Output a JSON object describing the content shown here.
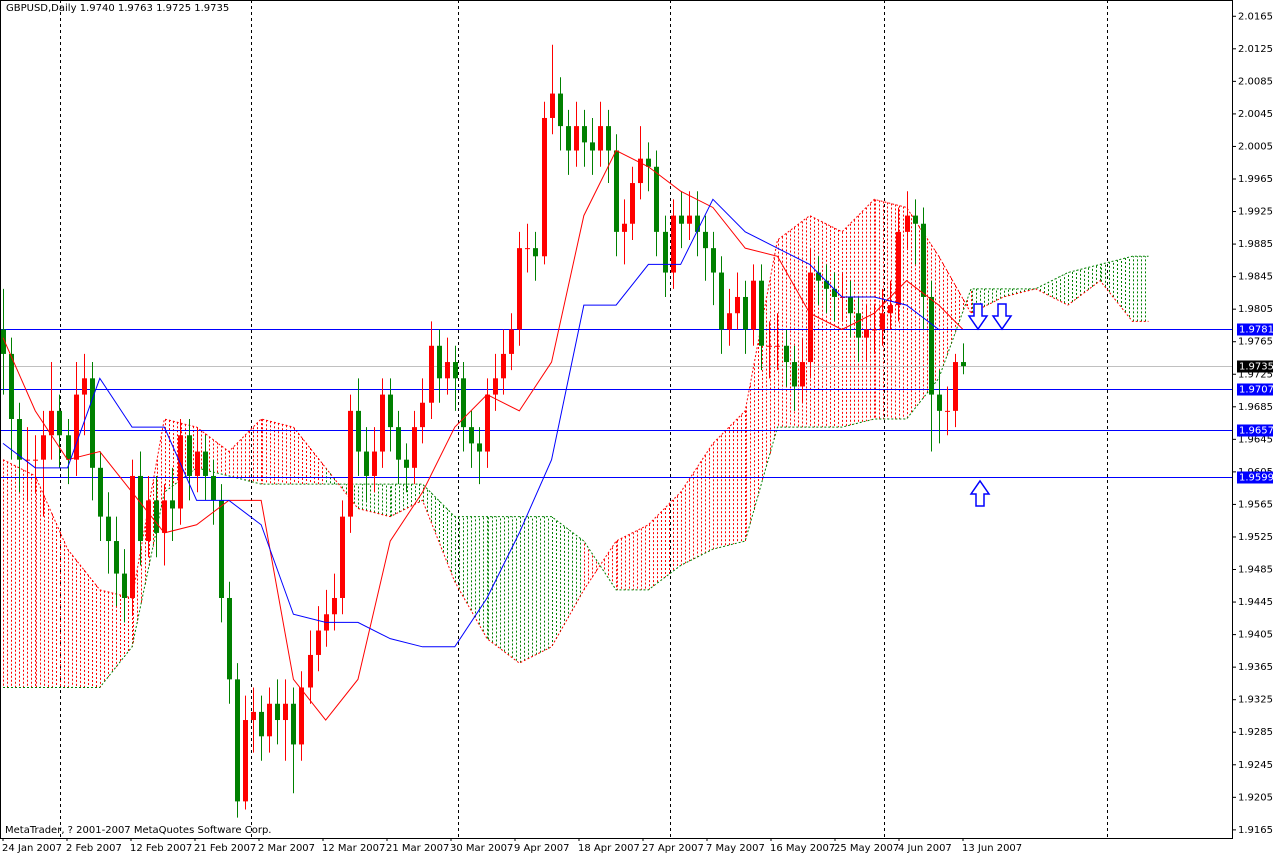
{
  "header": {
    "title": "GBPUSD,Daily",
    "ohlc": [
      "1.9740",
      "1.9763",
      "1.9725",
      "1.9735"
    ]
  },
  "chart_data": {
    "type": "candlestick",
    "open": [
      1.978,
      1.975,
      1.967,
      1.962,
      1.962,
      1.962,
      1.965,
      1.968,
      1.965,
      1.962,
      1.97,
      1.972,
      1.961,
      1.955,
      1.952,
      1.948,
      1.945,
      1.96,
      1.952,
      1.957,
      1.953,
      1.957,
      1.956,
      1.965,
      1.96,
      1.963,
      1.96,
      1.957,
      1.945,
      1.935,
      1.92,
      1.93,
      1.931,
      1.928,
      1.932,
      1.93,
      1.932,
      1.927,
      1.934,
      1.938,
      1.941,
      1.943,
      1.945,
      1.955,
      1.968,
      1.963,
      1.96,
      1.963,
      1.97,
      1.966,
      1.962,
      1.961,
      1.966,
      1.969,
      1.976,
      1.972,
      1.974,
      1.972,
      1.966,
      1.964,
      1.963,
      1.97,
      1.972,
      1.975,
      1.978,
      1.988,
      1.988,
      1.987,
      2.004,
      2.007,
      2.003,
      2.0,
      2.003,
      2.001,
      2.0,
      2.003,
      2.0,
      1.99,
      1.991,
      1.996,
      1.999,
      1.998,
      1.99,
      1.985,
      1.992,
      1.991,
      1.992,
      1.99,
      1.988,
      1.985,
      1.978,
      1.98,
      1.982,
      1.978,
      1.984,
      1.976,
      1.976,
      1.976,
      1.974,
      1.971,
      1.974,
      1.985,
      1.984,
      1.983,
      1.982,
      1.982,
      1.98,
      1.977,
      1.978,
      1.978,
      1.98,
      1.981,
      1.99,
      1.992,
      1.991,
      1.982,
      1.97,
      1.968,
      1.968,
      1.974
    ],
    "high": [
      1.983,
      1.977,
      1.969,
      1.966,
      1.965,
      1.968,
      1.974,
      1.97,
      1.967,
      1.974,
      1.975,
      1.974,
      1.963,
      1.958,
      1.955,
      1.951,
      1.962,
      1.963,
      1.96,
      1.96,
      1.959,
      1.961,
      1.967,
      1.967,
      1.966,
      1.965,
      1.962,
      1.959,
      1.947,
      1.937,
      1.933,
      1.934,
      1.933,
      1.934,
      1.935,
      1.935,
      1.934,
      1.936,
      1.941,
      1.944,
      1.946,
      1.948,
      1.957,
      1.97,
      1.972,
      1.966,
      1.966,
      1.972,
      1.972,
      1.968,
      1.964,
      1.968,
      1.972,
      1.979,
      1.978,
      1.977,
      1.976,
      1.974,
      1.968,
      1.966,
      1.972,
      1.975,
      1.978,
      1.98,
      1.99,
      1.991,
      1.99,
      2.006,
      2.013,
      2.009,
      2.005,
      2.006,
      2.005,
      2.004,
      2.006,
      2.005,
      2.002,
      1.994,
      1.998,
      2.003,
      2.001,
      2.0,
      1.992,
      1.994,
      1.995,
      1.995,
      1.995,
      1.992,
      1.99,
      1.987,
      1.983,
      1.985,
      1.984,
      1.986,
      1.986,
      1.979,
      1.98,
      1.978,
      1.976,
      1.977,
      1.988,
      1.987,
      1.986,
      1.985,
      1.985,
      1.984,
      1.982,
      1.981,
      1.981,
      1.983,
      1.984,
      1.993,
      1.995,
      1.994,
      1.993,
      1.984,
      1.973,
      1.971,
      1.975,
      1.9763
    ],
    "low": [
      1.97,
      1.962,
      1.958,
      1.957,
      1.958,
      1.955,
      1.962,
      1.961,
      1.959,
      1.96,
      1.965,
      1.957,
      1.952,
      1.948,
      1.944,
      1.942,
      1.943,
      1.949,
      1.95,
      1.95,
      1.949,
      1.952,
      1.954,
      1.957,
      1.958,
      1.957,
      1.954,
      1.942,
      1.932,
      1.918,
      1.919,
      1.926,
      1.925,
      1.926,
      1.927,
      1.925,
      1.921,
      1.925,
      1.932,
      1.936,
      1.939,
      1.941,
      1.943,
      1.953,
      1.96,
      1.957,
      1.958,
      1.961,
      1.963,
      1.959,
      1.958,
      1.959,
      1.964,
      1.967,
      1.969,
      1.97,
      1.968,
      1.963,
      1.961,
      1.959,
      1.961,
      1.968,
      1.97,
      1.973,
      1.976,
      1.985,
      1.984,
      1.986,
      2.002,
      2.0,
      1.997,
      1.998,
      1.998,
      1.997,
      1.998,
      1.996,
      1.987,
      1.986,
      1.989,
      1.994,
      1.995,
      1.987,
      1.982,
      1.983,
      1.988,
      1.989,
      1.987,
      1.984,
      1.981,
      1.975,
      1.976,
      1.978,
      1.975,
      1.976,
      1.973,
      1.972,
      1.973,
      1.971,
      1.968,
      1.969,
      1.972,
      1.981,
      1.98,
      1.979,
      1.979,
      1.977,
      1.974,
      1.974,
      1.975,
      1.976,
      1.978,
      1.979,
      1.988,
      1.986,
      1.978,
      1.963,
      1.964,
      1.965,
      1.966,
      1.9725
    ],
    "close": [
      1.975,
      1.967,
      1.962,
      1.962,
      1.962,
      1.965,
      1.968,
      1.965,
      1.962,
      1.97,
      1.972,
      1.961,
      1.955,
      1.952,
      1.948,
      1.945,
      1.96,
      1.952,
      1.957,
      1.953,
      1.957,
      1.956,
      1.965,
      1.96,
      1.963,
      1.96,
      1.957,
      1.945,
      1.935,
      1.92,
      1.93,
      1.931,
      1.928,
      1.932,
      1.93,
      1.932,
      1.927,
      1.934,
      1.938,
      1.941,
      1.943,
      1.945,
      1.955,
      1.968,
      1.963,
      1.96,
      1.963,
      1.97,
      1.966,
      1.962,
      1.961,
      1.966,
      1.969,
      1.976,
      1.972,
      1.974,
      1.972,
      1.966,
      1.964,
      1.963,
      1.97,
      1.972,
      1.975,
      1.978,
      1.988,
      1.988,
      1.987,
      2.004,
      2.007,
      2.003,
      2.0,
      2.003,
      2.001,
      2.0,
      2.003,
      2.0,
      1.99,
      1.991,
      1.996,
      1.999,
      1.998,
      1.99,
      1.985,
      1.992,
      1.991,
      1.992,
      1.99,
      1.988,
      1.985,
      1.978,
      1.98,
      1.982,
      1.978,
      1.984,
      1.976,
      1.976,
      1.976,
      1.974,
      1.971,
      1.974,
      1.985,
      1.984,
      1.983,
      1.982,
      1.982,
      1.98,
      1.977,
      1.978,
      1.978,
      1.98,
      1.981,
      1.99,
      1.992,
      1.991,
      1.982,
      1.97,
      1.968,
      1.968,
      1.974,
      1.9735
    ],
    "up_color": "#ff0000",
    "down_color": "#008000",
    "ylim": [
      1.9155,
      2.0185
    ],
    "yticks": [
      2.0165,
      2.0125,
      2.0085,
      2.0045,
      2.0005,
      1.9965,
      1.9925,
      1.9885,
      1.9845,
      1.9805,
      1.9765,
      1.9725,
      1.9685,
      1.9645,
      1.9605,
      1.9565,
      1.9525,
      1.9485,
      1.9445,
      1.9405,
      1.9365,
      1.9325,
      1.9285,
      1.9245,
      1.9205,
      1.9165
    ],
    "x_labels": [
      "24 Jan 2007",
      "2 Feb 2007",
      "12 Feb 2007",
      "21 Feb 2007",
      "2 Mar 2007",
      "12 Mar 2007",
      "21 Mar 2007",
      "30 Mar 2007",
      "9 Apr 2007",
      "18 Apr 2007",
      "27 Apr 2007",
      "7 May 2007",
      "16 May 2007",
      "25 May 2007",
      "4 Jun 2007",
      "13 Jun 2007"
    ],
    "ichimoku": {
      "x": [
        0,
        4,
        8,
        12,
        16,
        20,
        24,
        28,
        32,
        36,
        40,
        44,
        48,
        52,
        56,
        60,
        64,
        68,
        72,
        76,
        80,
        84,
        88,
        92,
        96,
        100,
        104,
        108,
        112,
        116,
        119
      ],
      "tenkan": [
        1.977,
        1.968,
        1.962,
        1.963,
        1.958,
        1.953,
        1.954,
        1.957,
        1.957,
        1.935,
        1.93,
        1.935,
        1.952,
        1.958,
        1.966,
        1.97,
        1.968,
        1.974,
        1.992,
        2.0,
        1.998,
        1.995,
        1.993,
        1.988,
        1.987,
        1.98,
        1.978,
        1.98,
        1.984,
        1.981,
        1.978
      ],
      "kijun": [
        1.964,
        1.961,
        1.961,
        1.972,
        1.966,
        1.966,
        1.957,
        1.957,
        1.954,
        1.943,
        1.942,
        1.942,
        1.94,
        1.939,
        1.939,
        1.945,
        1.953,
        1.962,
        1.981,
        1.981,
        1.986,
        1.986,
        1.994,
        1.99,
        1.988,
        1.986,
        1.982,
        1.982,
        1.981,
        1.978,
        1.978
      ],
      "tenkan_color": "#ff0000",
      "kijun_color": "#0000ff"
    },
    "cloud": {
      "x": [
        0,
        4,
        8,
        12,
        16,
        20,
        24,
        28,
        32,
        36,
        40,
        44,
        48,
        52,
        56,
        60,
        64,
        68,
        72,
        76,
        80,
        84,
        88,
        92,
        96,
        100,
        104,
        108,
        112,
        116,
        120,
        124,
        128,
        132,
        136,
        140,
        142
      ],
      "span_a": [
        1.962,
        1.96,
        1.951,
        1.946,
        1.945,
        1.967,
        1.966,
        1.963,
        1.967,
        1.966,
        1.961,
        1.956,
        1.955,
        1.957,
        1.947,
        1.94,
        1.937,
        1.939,
        1.946,
        1.952,
        1.954,
        1.958,
        1.964,
        1.968,
        1.989,
        1.992,
        1.99,
        1.994,
        1.993,
        1.987,
        1.98,
        1.982,
        1.983,
        1.981,
        1.984,
        1.979,
        1.979
      ],
      "span_b": [
        1.934,
        1.934,
        1.934,
        1.934,
        1.939,
        1.958,
        1.961,
        1.96,
        1.959,
        1.959,
        1.959,
        1.959,
        1.959,
        1.959,
        1.955,
        1.955,
        1.955,
        1.955,
        1.952,
        1.946,
        1.946,
        1.949,
        1.951,
        1.952,
        1.966,
        1.966,
        1.966,
        1.967,
        1.967,
        1.972,
        1.983,
        1.983,
        1.983,
        1.985,
        1.986,
        1.987,
        1.987
      ],
      "a_color": "#ff0000",
      "b_color": "#008000"
    },
    "levels": {
      "values": [
        1.9781,
        1.9707,
        1.9657,
        1.9599
      ],
      "color": "#0000ff"
    },
    "footer": "MetaTrader, ? 2001-2007 MetaQuotes Software Corp."
  }
}
